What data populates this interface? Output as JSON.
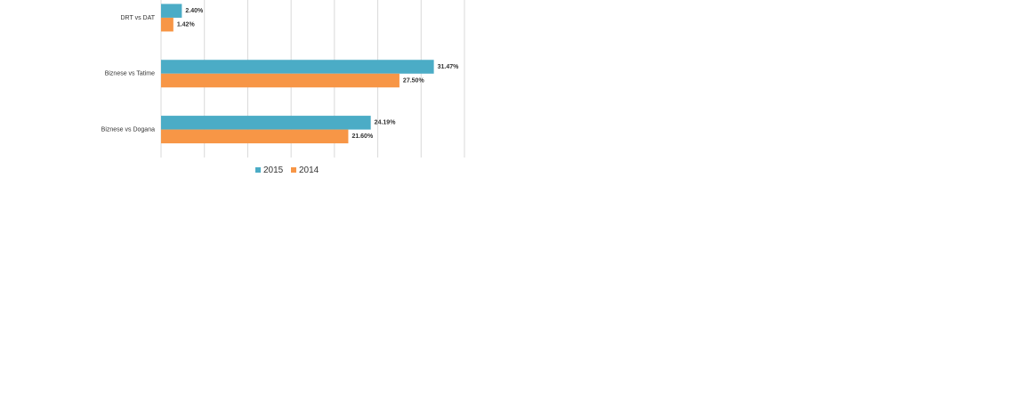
{
  "chart_data": {
    "type": "hbar",
    "categories": [
      "DRT vs DAT",
      "Biznese vs Tatime",
      "Biznese vs Dogana"
    ],
    "series": [
      {
        "name": "2015",
        "color": "#4bacc6",
        "values": [
          2.4,
          31.47,
          24.19
        ],
        "value_labels": [
          "2.40%",
          "31.47%",
          "24.19%"
        ]
      },
      {
        "name": "2014",
        "color": "#f79646",
        "values": [
          1.42,
          27.5,
          21.6
        ],
        "value_labels": [
          "1.42%",
          "27.50%",
          "21.60%"
        ]
      }
    ],
    "xlim": [
      0,
      35
    ],
    "xticks": [
      0,
      5,
      10,
      15,
      20,
      25,
      30,
      35
    ],
    "grid": true,
    "legend": "bottom"
  }
}
